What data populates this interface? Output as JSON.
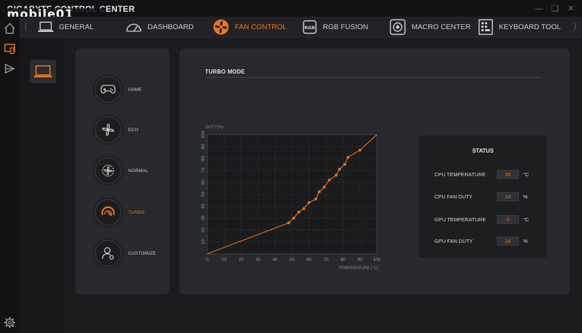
{
  "app": {
    "title": "GIGABYTE CONTROL CENTER",
    "watermark": "mobile01"
  },
  "colors": {
    "accent": "#e87722",
    "panel": "#27292c",
    "background": "#111214"
  },
  "nav": {
    "tabs": [
      {
        "label": "GENERAL",
        "icon": "laptop-icon"
      },
      {
        "label": "DASHBOARD",
        "icon": "gauge-icon"
      },
      {
        "label": "FAN CONTROL",
        "icon": "fan-icon",
        "active": true
      },
      {
        "label": "RGB FUSION",
        "icon": "rgb-chip-icon"
      },
      {
        "label": "MACRO CENTER",
        "icon": "macro-icon"
      },
      {
        "label": "KEYBOARD TOOL",
        "icon": "keyboard-tool-icon"
      }
    ]
  },
  "modes": [
    {
      "label": "GAME",
      "icon": "gamepad-icon"
    },
    {
      "label": "ECO",
      "icon": "eco-fan-icon"
    },
    {
      "label": "NORMAL",
      "icon": "normal-fan-icon"
    },
    {
      "label": "TURBO",
      "icon": "turbo-gauge-icon",
      "active": true
    },
    {
      "label": "CUSTOMIZE",
      "icon": "user-settings-icon"
    }
  ],
  "turbo": {
    "title": "TURBO MODE"
  },
  "chart_data": {
    "type": "line",
    "ylabel": "DUTY(%)",
    "xlabel": "TEMPERATURE (°C)",
    "xlim": [
      0,
      100
    ],
    "ylim": [
      0,
      100
    ],
    "xticks": [
      0,
      10,
      20,
      30,
      40,
      50,
      60,
      70,
      80,
      90,
      100
    ],
    "yticks": [
      10,
      20,
      30,
      40,
      50,
      60,
      70,
      80,
      90,
      100
    ],
    "grid": true,
    "series": [
      {
        "x": [
          0,
          48,
          51,
          54,
          57,
          60,
          64,
          66,
          69,
          72,
          76,
          78,
          81,
          83,
          90,
          100
        ],
        "y": [
          0,
          26,
          30,
          35,
          38,
          43,
          46,
          52,
          56,
          62,
          66,
          71,
          75,
          81,
          87,
          100
        ],
        "points": [
          [
            48,
            26
          ],
          [
            51,
            30
          ],
          [
            54,
            35
          ],
          [
            57,
            38
          ],
          [
            60,
            43
          ],
          [
            64,
            46
          ],
          [
            66,
            52
          ],
          [
            69,
            56
          ],
          [
            72,
            62
          ],
          [
            76,
            66
          ],
          [
            78,
            71
          ],
          [
            81,
            75
          ],
          [
            83,
            81
          ],
          [
            90,
            87
          ]
        ]
      }
    ]
  },
  "status": {
    "title": "STATUS",
    "rows": [
      {
        "label": "CPU TEMPERATURE",
        "value": "39",
        "unit": "°C"
      },
      {
        "label": "CPU FAN DUTY",
        "value": "24",
        "unit": "%"
      },
      {
        "label": "GPU TEMPERATURE",
        "value": "0",
        "unit": "°C"
      },
      {
        "label": "GPU FAN DUTY",
        "value": "24",
        "unit": "%"
      }
    ]
  }
}
